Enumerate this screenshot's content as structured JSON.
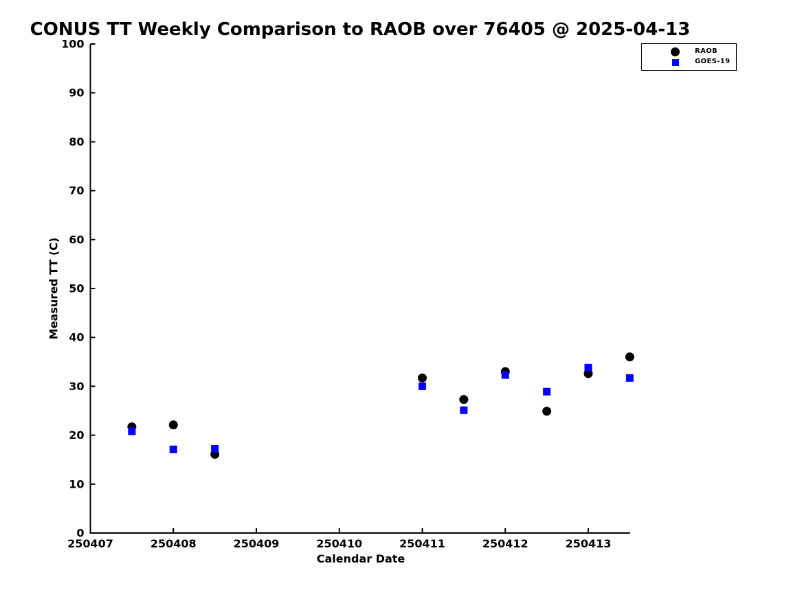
{
  "chart_data": {
    "type": "scatter",
    "title": "CONUS TT Weekly Comparison to RAOB over 76405 @ 2025-04-13",
    "xlabel": "Calendar Date",
    "ylabel": "Measured TT (C)",
    "x_tick_labels": [
      "250407",
      "250408",
      "250409",
      "250410",
      "250411",
      "250412",
      "250413"
    ],
    "y_ticks": [
      0,
      10,
      20,
      30,
      40,
      50,
      60,
      70,
      80,
      90,
      100
    ],
    "ylim": [
      0,
      100
    ],
    "xlim_days_from_250407": [
      0,
      6.5
    ],
    "grid": false,
    "legend_position": "top-right",
    "series": [
      {
        "name": "RAOB",
        "marker": "circle",
        "color": "#000000",
        "x": [
          250407.5,
          250408.0,
          250408.5,
          250411.0,
          250411.5,
          250412.0,
          250412.5,
          250413.0,
          250413.5
        ],
        "x_days": [
          0.5,
          1.0,
          1.5,
          4.0,
          4.5,
          5.0,
          5.5,
          6.0,
          6.5
        ],
        "values": [
          21.7,
          22.1,
          16.1,
          31.7,
          27.3,
          33.0,
          24.9,
          32.6,
          36.0
        ]
      },
      {
        "name": "GOES-19",
        "marker": "square",
        "color": "#0000ff",
        "x": [
          250407.5,
          250408.0,
          250408.5,
          250411.0,
          250411.5,
          250412.0,
          250412.5,
          250413.0,
          250413.5
        ],
        "x_days": [
          0.5,
          1.0,
          1.5,
          4.0,
          4.5,
          5.0,
          5.5,
          6.0,
          6.5
        ],
        "values": [
          20.8,
          17.1,
          17.2,
          30.0,
          25.1,
          32.3,
          28.9,
          33.8,
          31.7
        ]
      }
    ]
  },
  "colors": {
    "background": "#ffffff",
    "axis": "#000000",
    "raob": "#000000",
    "goes19": "#0000ff"
  }
}
